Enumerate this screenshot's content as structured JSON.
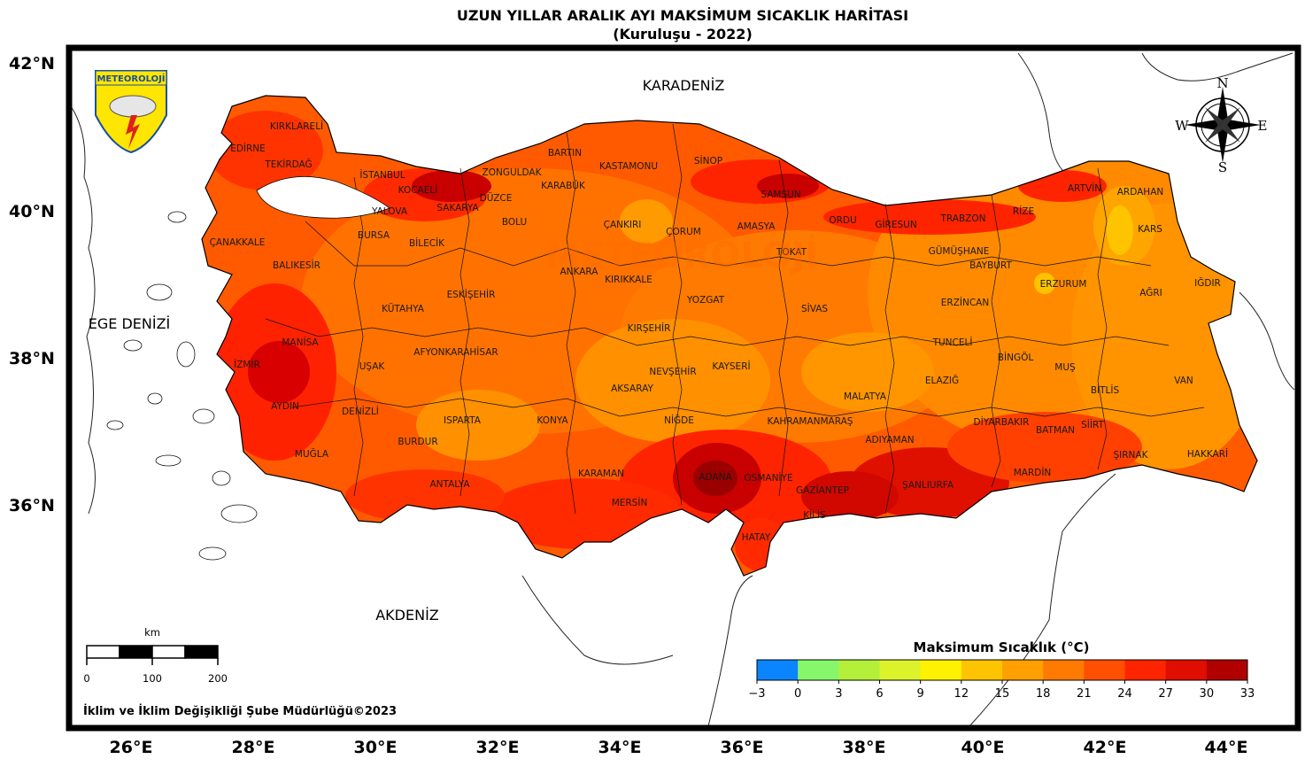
{
  "title": "UZUN YILLAR ARALIK AYI MAKSİMUM SICAKLIK HARİTASI",
  "subtitle": "(Kuruluşu - 2022)",
  "lat_labels": [
    "42°N",
    "40°N",
    "38°N",
    "36°N"
  ],
  "lon_labels": [
    "26°E",
    "28°E",
    "30°E",
    "32°E",
    "34°E",
    "36°E",
    "38°E",
    "40°E",
    "42°E",
    "44°E"
  ],
  "seas": {
    "black_sea": "KARADENİZ",
    "aegean": "EGE DENİZİ",
    "mediterranean": "AKDENİZ"
  },
  "logo_text": "METEOROLOJİ",
  "watermark_text": "METEOROLOJİ",
  "compass": {
    "n": "N",
    "s": "S",
    "e": "E",
    "w": "W"
  },
  "scale_bar": {
    "unit": "km",
    "ticks": [
      "0",
      "100",
      "200"
    ]
  },
  "legend": {
    "title": "Maksimum Sıcaklık (°C)",
    "ticks": [
      "−3",
      "0",
      "3",
      "6",
      "9",
      "12",
      "15",
      "18",
      "21",
      "24",
      "27",
      "30",
      "33"
    ],
    "colors": [
      "#0a84ff",
      "#86f76a",
      "#b4f03a",
      "#dcf22a",
      "#fff200",
      "#ffc400",
      "#ff9f00",
      "#ff7a00",
      "#ff4f00",
      "#ff2400",
      "#e00e00",
      "#b00000"
    ]
  },
  "footer": "İklim ve İklim Değişikliği Şube Müdürlüğü©2023",
  "provinces": [
    "KIRKLARELİ",
    "EDİRNE",
    "TEKİRDAĞ",
    "İSTANBUL",
    "KOCAELİ",
    "SAKARYA",
    "DÜZCE",
    "ZONGULDAK",
    "BARTIN",
    "KARABÜK",
    "KASTAMONU",
    "SİNOP",
    "SAMSUN",
    "ORDU",
    "GİRESUN",
    "TRABZON",
    "RİZE",
    "ARTVİN",
    "ARDAHAN",
    "KARS",
    "IĞDIR",
    "AĞRI",
    "ERZURUM",
    "BAYBURT",
    "GÜMÜŞHANE",
    "ERZİNCAN",
    "TUNCELİ",
    "BİNGÖL",
    "MUŞ",
    "BİTLİS",
    "VAN",
    "HAKKARİ",
    "ŞIRNAK",
    "SİİRT",
    "BATMAN",
    "MARDİN",
    "DİYARBAKIR",
    "ELAZIĞ",
    "MALATYA",
    "ADIYAMAN",
    "ŞANLIURFA",
    "GAZİANTEP",
    "KİLİS",
    "HATAY",
    "OSMANİYE",
    "ADANA",
    "KAHRAMANMARAŞ",
    "MERSİN",
    "KARAMAN",
    "NİĞDE",
    "AKSARAY",
    "NEVŞEHİR",
    "KAYSERİ",
    "SİVAS",
    "TOKAT",
    "AMASYA",
    "ÇORUM",
    "YOZGAT",
    "KIRŞEHİR",
    "KIRIKKALE",
    "ANKARA",
    "ÇANKIRI",
    "BOLU",
    "BİLECİK",
    "BURSA",
    "YALOVA",
    "ÇANAKKALE",
    "BALIKESİR",
    "MANİSA",
    "İZMİR",
    "AYDIN",
    "MUĞLA",
    "DENİZLİ",
    "UŞAK",
    "KÜTAHYA",
    "ESKİŞEHİR",
    "AFYONKARAHİSAR",
    "ISPARTA",
    "BURDUR",
    "ANTALYA",
    "KONYA"
  ]
}
